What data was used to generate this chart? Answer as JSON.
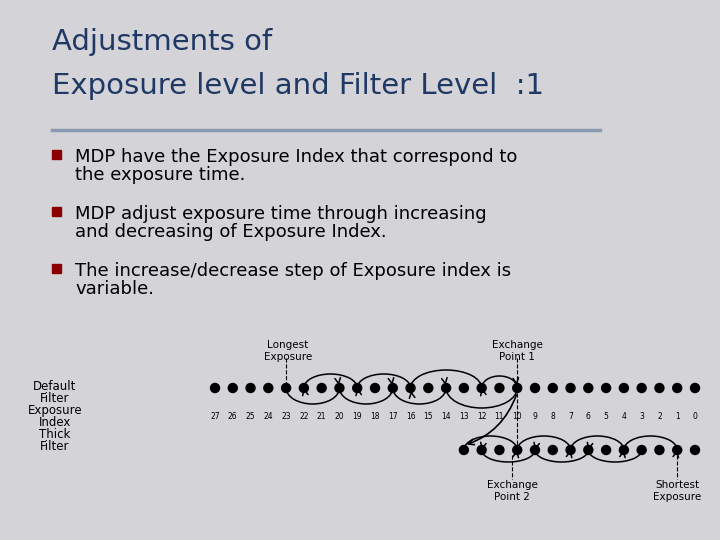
{
  "title_line1": "Adjustments of",
  "title_line2": "Exposure level and Filter Level  :1",
  "title_color": "#1F3864",
  "bg_color": "#D3D3D8",
  "bullet_color": "#8B0000",
  "text_color": "#000000",
  "bullet1_line1": "MDP have the Exposure Index that correspond to",
  "bullet1_line2": "the exposure time.",
  "bullet2_line1": "MDP adjust exposure time through increasing",
  "bullet2_line2": "and decreasing of Exposure Index.",
  "bullet3_line1": "The increase/decrease step of Exposure index is",
  "bullet3_line2": "variable.",
  "divider_color": "#8A9BB0",
  "diagram_numbers": [
    27,
    26,
    25,
    24,
    23,
    22,
    21,
    20,
    19,
    18,
    17,
    16,
    15,
    14,
    13,
    12,
    11,
    10,
    9,
    8,
    7,
    6,
    5,
    4,
    3,
    2,
    1,
    0
  ]
}
